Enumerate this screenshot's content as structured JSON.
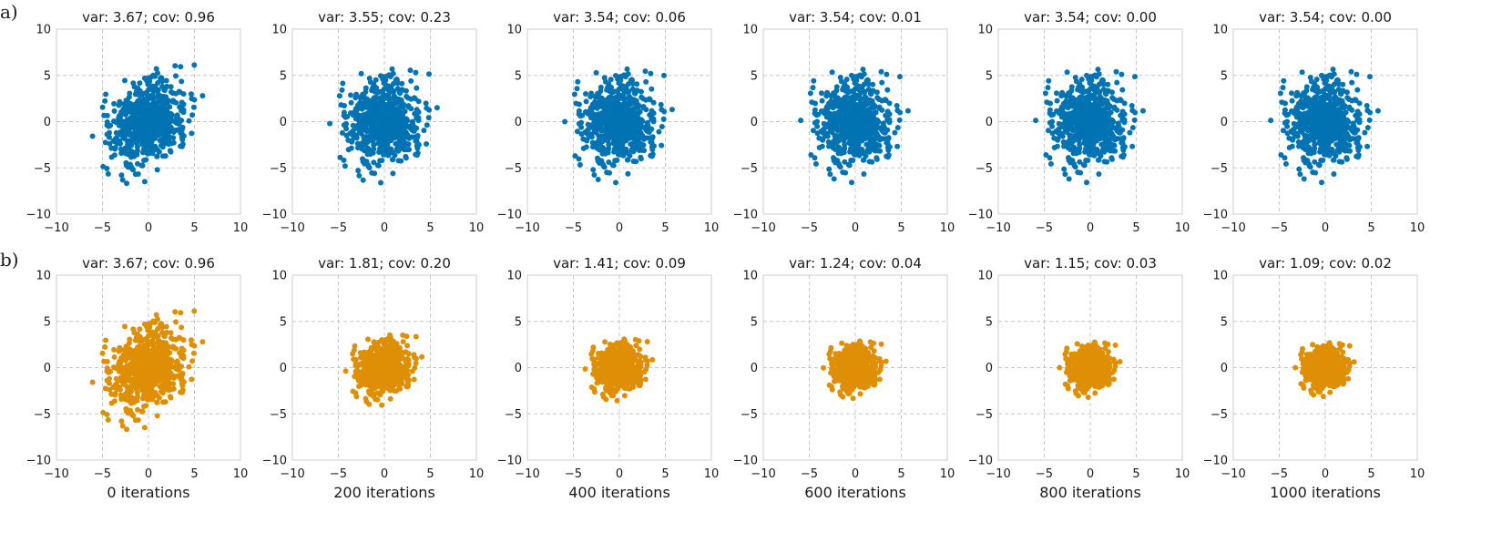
{
  "figure": {
    "row_labels": [
      "a)",
      "b)"
    ],
    "colors": {
      "row_a": "#0173B2",
      "row_b": "#DE8F05",
      "grid": "#c8c8c8",
      "frame": "#cccccc"
    }
  },
  "chart_data": [
    {
      "type": "scatter",
      "row": "a",
      "title": "var: 3.67; cov: 0.96",
      "xlabel": "",
      "xlim": [
        -10,
        10
      ],
      "ylim": [
        -10,
        10
      ],
      "xticks": [
        -10,
        -5,
        0,
        5,
        10
      ],
      "yticks": [
        -10,
        -5,
        0,
        5,
        10
      ],
      "grid": "dashed",
      "spread": [
        1.95,
        2.2
      ],
      "corr": 0.25,
      "color": "#0173B2"
    },
    {
      "type": "scatter",
      "row": "a",
      "title": "var: 3.55; cov: 0.23",
      "xlabel": "",
      "xlim": [
        -10,
        10
      ],
      "ylim": [
        -10,
        10
      ],
      "xticks": [
        -10,
        -5,
        0,
        5,
        10
      ],
      "yticks": [
        -10,
        -5,
        0,
        5,
        10
      ],
      "grid": "dashed",
      "spread": [
        1.9,
        2.2
      ],
      "corr": 0.05,
      "color": "#0173B2"
    },
    {
      "type": "scatter",
      "row": "a",
      "title": "var: 3.54; cov: 0.06",
      "xlabel": "",
      "xlim": [
        -10,
        10
      ],
      "ylim": [
        -10,
        10
      ],
      "xticks": [
        -10,
        -5,
        0,
        5,
        10
      ],
      "yticks": [
        -10,
        -5,
        0,
        5,
        10
      ],
      "grid": "dashed",
      "spread": [
        1.9,
        2.2
      ],
      "corr": 0.02,
      "color": "#0173B2"
    },
    {
      "type": "scatter",
      "row": "a",
      "title": "var: 3.54; cov: 0.01",
      "xlabel": "",
      "xlim": [
        -10,
        10
      ],
      "ylim": [
        -10,
        10
      ],
      "xticks": [
        -10,
        -5,
        0,
        5,
        10
      ],
      "yticks": [
        -10,
        -5,
        0,
        5,
        10
      ],
      "grid": "dashed",
      "spread": [
        1.9,
        2.2
      ],
      "corr": 0.0,
      "color": "#0173B2"
    },
    {
      "type": "scatter",
      "row": "a",
      "title": "var: 3.54; cov: 0.00",
      "xlabel": "",
      "xlim": [
        -10,
        10
      ],
      "ylim": [
        -10,
        10
      ],
      "xticks": [
        -10,
        -5,
        0,
        5,
        10
      ],
      "yticks": [
        -10,
        -5,
        0,
        5,
        10
      ],
      "grid": "dashed",
      "spread": [
        1.9,
        2.2
      ],
      "corr": 0.0,
      "color": "#0173B2"
    },
    {
      "type": "scatter",
      "row": "a",
      "title": "var: 3.54; cov: 0.00",
      "xlabel": "",
      "xlim": [
        -10,
        10
      ],
      "ylim": [
        -10,
        10
      ],
      "xticks": [
        -10,
        -5,
        0,
        5,
        10
      ],
      "yticks": [
        -10,
        -5,
        0,
        5,
        10
      ],
      "grid": "dashed",
      "spread": [
        1.9,
        2.2
      ],
      "corr": 0.0,
      "color": "#0173B2"
    },
    {
      "type": "scatter",
      "row": "b",
      "title": "var: 3.67; cov: 0.96",
      "xlabel": "0 iterations",
      "xlim": [
        -10,
        10
      ],
      "ylim": [
        -10,
        10
      ],
      "xticks": [
        -10,
        -5,
        0,
        5,
        10
      ],
      "yticks": [
        -10,
        -5,
        0,
        5,
        10
      ],
      "grid": "dashed",
      "spread": [
        1.95,
        2.2
      ],
      "corr": 0.25,
      "color": "#DE8F05"
    },
    {
      "type": "scatter",
      "row": "b",
      "title": "var: 1.81; cov: 0.20",
      "xlabel": "200 iterations",
      "xlim": [
        -10,
        10
      ],
      "ylim": [
        -10,
        10
      ],
      "xticks": [
        -10,
        -5,
        0,
        5,
        10
      ],
      "yticks": [
        -10,
        -5,
        0,
        5,
        10
      ],
      "grid": "dashed",
      "spread": [
        1.35,
        1.35
      ],
      "corr": 0.11,
      "color": "#DE8F05"
    },
    {
      "type": "scatter",
      "row": "b",
      "title": "var: 1.41; cov: 0.09",
      "xlabel": "400 iterations",
      "xlim": [
        -10,
        10
      ],
      "ylim": [
        -10,
        10
      ],
      "xticks": [
        -10,
        -5,
        0,
        5,
        10
      ],
      "yticks": [
        -10,
        -5,
        0,
        5,
        10
      ],
      "grid": "dashed",
      "spread": [
        1.19,
        1.19
      ],
      "corr": 0.06,
      "color": "#DE8F05"
    },
    {
      "type": "scatter",
      "row": "b",
      "title": "var: 1.24; cov: 0.04",
      "xlabel": "600 iterations",
      "xlim": [
        -10,
        10
      ],
      "ylim": [
        -10,
        10
      ],
      "xticks": [
        -10,
        -5,
        0,
        5,
        10
      ],
      "yticks": [
        -10,
        -5,
        0,
        5,
        10
      ],
      "grid": "dashed",
      "spread": [
        1.11,
        1.11
      ],
      "corr": 0.03,
      "color": "#DE8F05"
    },
    {
      "type": "scatter",
      "row": "b",
      "title": "var: 1.15; cov: 0.03",
      "xlabel": "800 iterations",
      "xlim": [
        -10,
        10
      ],
      "ylim": [
        -10,
        10
      ],
      "xticks": [
        -10,
        -5,
        0,
        5,
        10
      ],
      "yticks": [
        -10,
        -5,
        0,
        5,
        10
      ],
      "grid": "dashed",
      "spread": [
        1.07,
        1.07
      ],
      "corr": 0.02,
      "color": "#DE8F05"
    },
    {
      "type": "scatter",
      "row": "b",
      "title": "var: 1.09; cov: 0.02",
      "xlabel": "1000 iterations",
      "xlim": [
        -10,
        10
      ],
      "ylim": [
        -10,
        10
      ],
      "xticks": [
        -10,
        -5,
        0,
        5,
        10
      ],
      "yticks": [
        -10,
        -5,
        0,
        5,
        10
      ],
      "grid": "dashed",
      "spread": [
        1.04,
        1.04
      ],
      "corr": 0.02,
      "color": "#DE8F05"
    }
  ]
}
